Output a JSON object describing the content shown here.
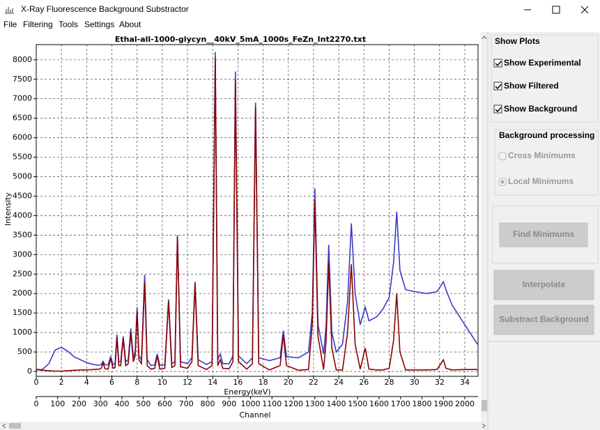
{
  "window": {
    "title": "X-Ray Fluorescence Background Substractor",
    "menu": [
      "File",
      "Filtering",
      "Tools",
      "Settings",
      "About"
    ]
  },
  "chart_data": {
    "type": "line",
    "title": "Ethal-all-1000-glycyn__40kV_5mA_1000s_FeZn_Int2270.txt",
    "xlabel": "Energy(keV)",
    "ylabel": "Intensity",
    "x2label": "Channel",
    "x": [
      0,
      0.5,
      1,
      1.5,
      2,
      2.5,
      3,
      3.5,
      4,
      4.5,
      5,
      5.15,
      5.3,
      5.45,
      5.7,
      5.9,
      6.1,
      6.25,
      6.4,
      6.55,
      6.7,
      6.9,
      7.1,
      7.3,
      7.5,
      7.7,
      7.85,
      8.0,
      8.15,
      8.35,
      8.6,
      8.8,
      9.1,
      9.4,
      9.6,
      9.8,
      10.2,
      10.5,
      10.75,
      11.0,
      11.2,
      11.45,
      12.0,
      12.35,
      12.6,
      12.85,
      13.5,
      13.95,
      14.2,
      14.4,
      14.6,
      14.8,
      15.3,
      15.6,
      15.8,
      16.05,
      16.7,
      17.15,
      17.4,
      17.65,
      18.5,
      19.35,
      19.6,
      19.85,
      20.8,
      21.6,
      21.9,
      22.1,
      22.35,
      22.8,
      23.0,
      23.2,
      23.45,
      23.8,
      24.3,
      24.7,
      25.0,
      25.3,
      25.7,
      26.1,
      26.4,
      27.0,
      27.5,
      28.0,
      28.35,
      28.6,
      28.85,
      29.3,
      30,
      31,
      31.8,
      32.1,
      32.3,
      32.5,
      33,
      34,
      35
    ],
    "series": [
      {
        "color": "#3a3ac8",
        "values": [
          50,
          50,
          200,
          550,
          620,
          520,
          380,
          300,
          230,
          180,
          160,
          180,
          260,
          170,
          170,
          380,
          180,
          200,
          950,
          250,
          250,
          900,
          250,
          300,
          1100,
          350,
          500,
          1650,
          400,
          300,
          2480,
          300,
          150,
          170,
          450,
          160,
          170,
          1850,
          200,
          250,
          3500,
          250,
          200,
          350,
          2300,
          300,
          180,
          250,
          8200,
          300,
          450,
          200,
          200,
          400,
          7700,
          400,
          200,
          350,
          6900,
          350,
          280,
          350,
          1050,
          380,
          350,
          500,
          1500,
          4700,
          1200,
          450,
          1200,
          3250,
          1000,
          500,
          700,
          1800,
          3800,
          2000,
          1200,
          1650,
          1300,
          1400,
          1600,
          1900,
          2800,
          4100,
          2600,
          2100,
          2050,
          2000,
          2050,
          2200,
          2300,
          2100,
          1700,
          1200,
          700
        ]
      },
      {
        "color": "#8b0000",
        "values": [
          50,
          30,
          20,
          10,
          10,
          20,
          30,
          40,
          40,
          50,
          60,
          80,
          220,
          70,
          60,
          330,
          80,
          100,
          880,
          150,
          150,
          850,
          150,
          200,
          1000,
          250,
          400,
          1550,
          300,
          200,
          2300,
          150,
          60,
          80,
          400,
          60,
          80,
          1800,
          100,
          150,
          3450,
          120,
          80,
          250,
          2250,
          150,
          50,
          150,
          8050,
          150,
          300,
          80,
          70,
          250,
          7500,
          250,
          60,
          200,
          6800,
          200,
          40,
          150,
          950,
          150,
          30,
          50,
          1200,
          4400,
          900,
          50,
          800,
          2800,
          600,
          40,
          40,
          1000,
          2750,
          700,
          60,
          600,
          60,
          40,
          40,
          80,
          800,
          2000,
          500,
          40,
          40,
          40,
          50,
          200,
          300,
          80,
          40,
          50,
          50
        ]
      }
    ],
    "xlim": [
      0,
      35.05
    ],
    "xticks": [
      0,
      2,
      4,
      6,
      8,
      10,
      12,
      14,
      16,
      18,
      20,
      22,
      24,
      26,
      28,
      30,
      32,
      34
    ],
    "ylim": [
      -125,
      8390
    ],
    "yticks": [
      0,
      500,
      1000,
      1500,
      2000,
      2500,
      3000,
      3500,
      4000,
      4500,
      5000,
      5500,
      6000,
      6500,
      7000,
      7500,
      8000
    ],
    "x2lim": [
      0,
      2061.8
    ],
    "x2ticks": [
      0,
      100,
      200,
      300,
      400,
      500,
      600,
      700,
      800,
      900,
      1000,
      1100,
      1200,
      1300,
      1400,
      1500,
      1600,
      1700,
      1800,
      1900,
      2000
    ],
    "grid": true
  },
  "panel": {
    "show_plots": {
      "title": "Show Plots",
      "checkboxes": [
        {
          "label": "Show Experimental",
          "checked": true
        },
        {
          "label": "Show Filtered",
          "checked": true
        },
        {
          "label": "Show Background",
          "checked": true
        }
      ]
    },
    "background_processing": {
      "title": "Background processing",
      "options": [
        {
          "label": "Cross Minimums",
          "selected": false
        },
        {
          "label": "Local Minimums",
          "selected": true
        }
      ]
    },
    "buttons": [
      "Find Minimums",
      "Interpolate",
      "Substract Background"
    ]
  }
}
